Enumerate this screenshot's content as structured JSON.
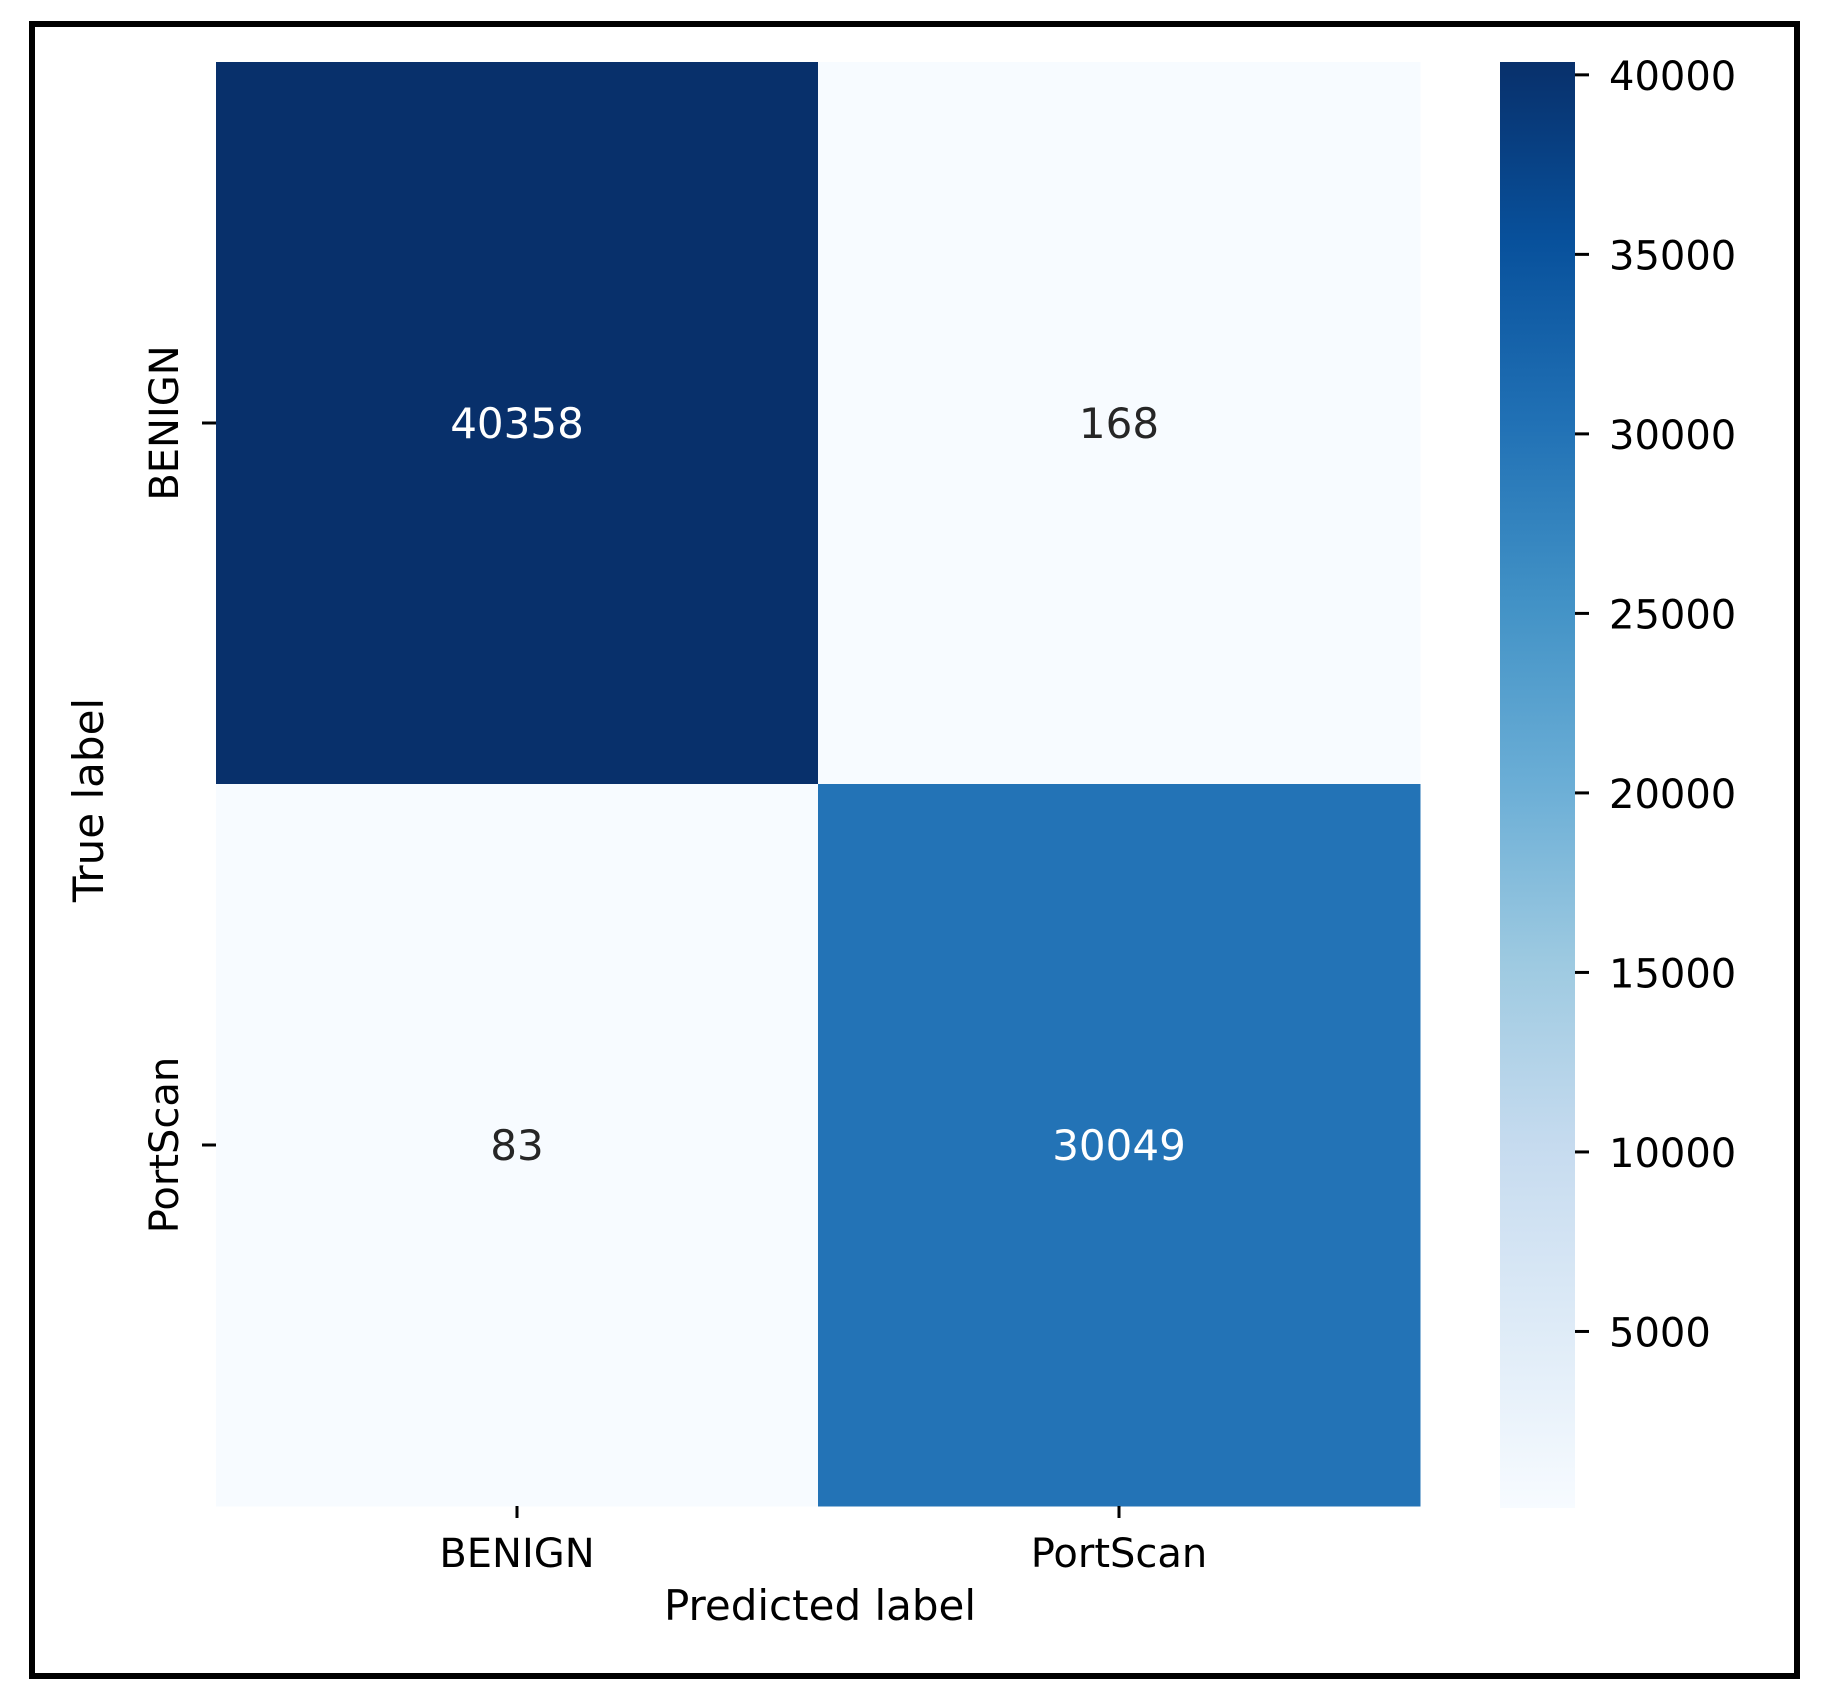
{
  "chart_data": {
    "type": "heatmap",
    "title": "",
    "xlabel": "Predicted label",
    "ylabel": "True label",
    "x_categories": [
      "BENIGN",
      "PortScan"
    ],
    "y_categories": [
      "BENIGN",
      "PortScan"
    ],
    "values": [
      [
        40358,
        168
      ],
      [
        83,
        30049
      ]
    ],
    "cell_labels": [
      [
        "40358",
        "168"
      ],
      [
        "83",
        "30049"
      ]
    ],
    "colormap": "Blues",
    "colorbar": {
      "range": [
        83,
        40358
      ],
      "ticks": [
        5000,
        10000,
        15000,
        20000,
        25000,
        30000,
        35000,
        40000
      ],
      "tick_labels": [
        "5000",
        "10000",
        "15000",
        "20000",
        "25000",
        "30000",
        "35000",
        "40000"
      ]
    },
    "grid": false,
    "legend": "colorbar-right"
  }
}
